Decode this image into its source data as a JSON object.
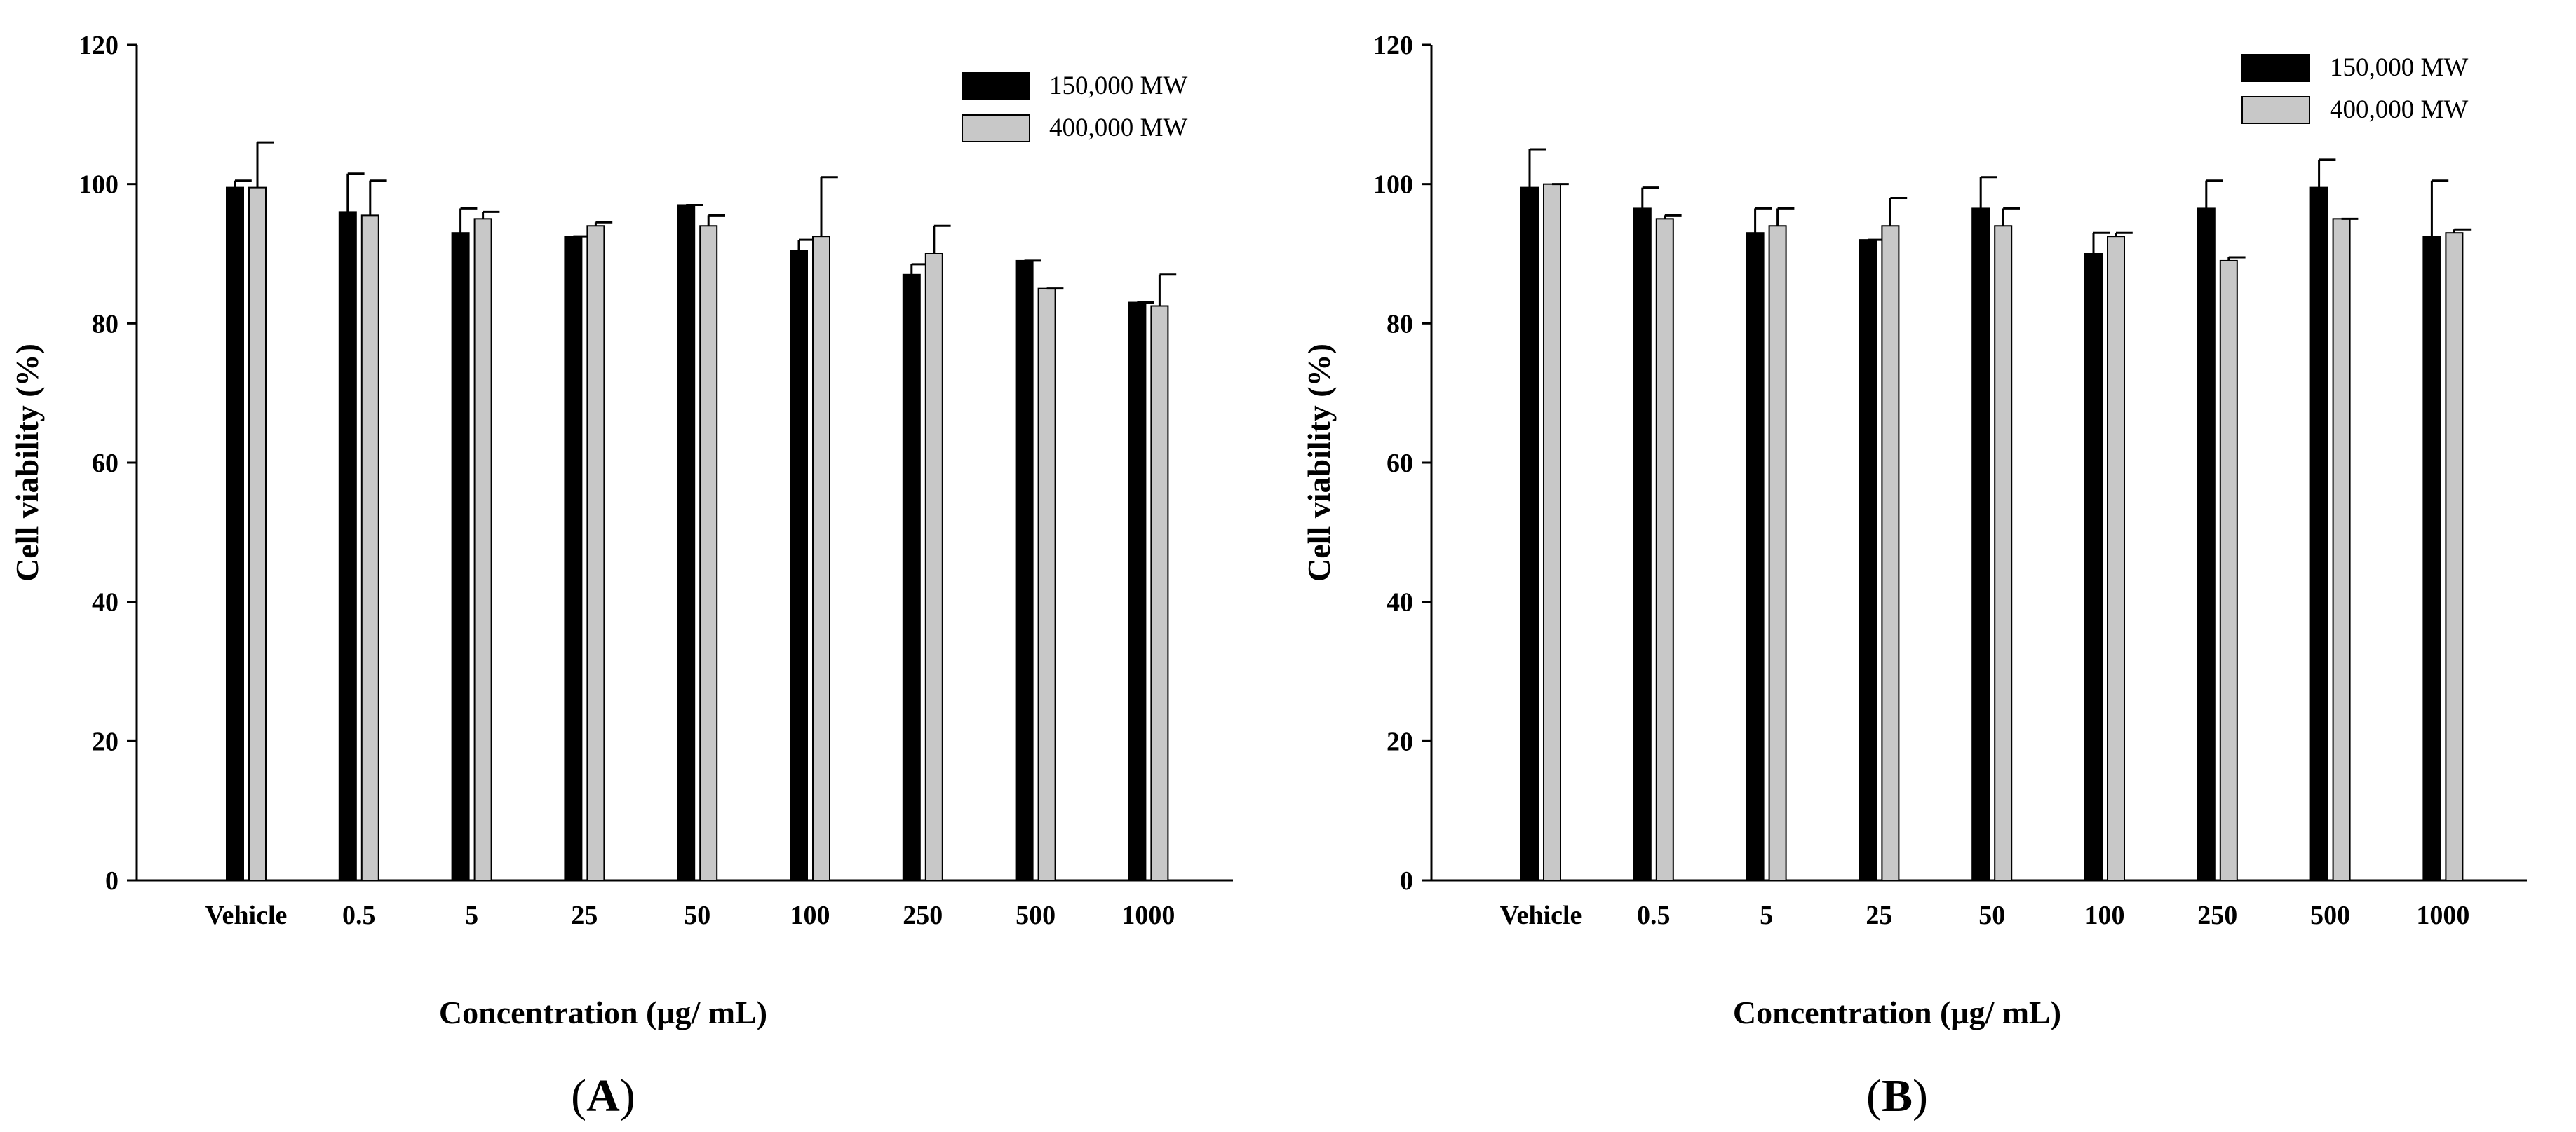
{
  "chart_data": [
    {
      "type": "bar",
      "panel_label": "A",
      "title": "",
      "xlabel": "Concentration (μg/ mL)",
      "ylabel": "Cell viability (%)",
      "ylim": [
        0,
        120
      ],
      "yticks": [
        0,
        20,
        40,
        60,
        80,
        100,
        120
      ],
      "ytick_labels": [
        "0",
        "20",
        "40",
        "60",
        "80",
        "100",
        "120"
      ],
      "grid": false,
      "legend_position": "top-right",
      "categories": [
        "Vehicle",
        "0.5",
        "5",
        "25",
        "50",
        "100",
        "250",
        "500",
        "1000"
      ],
      "series": [
        {
          "name": "150,000 MW",
          "color": "#000000",
          "values": [
            99.5,
            96.0,
            93.0,
            92.5,
            97.0,
            90.5,
            87.0,
            89.0,
            83.0
          ],
          "errors": [
            1.0,
            5.5,
            3.5,
            0.0,
            0.0,
            1.5,
            1.5,
            0.0,
            0.0
          ]
        },
        {
          "name": "400,000 MW",
          "color": "#c8c8c8",
          "values": [
            99.5,
            95.5,
            95.0,
            94.0,
            94.0,
            92.5,
            90.0,
            85.0,
            82.5
          ],
          "errors": [
            6.5,
            5.0,
            1.0,
            0.5,
            1.5,
            8.5,
            4.0,
            0.0,
            4.5
          ]
        }
      ]
    },
    {
      "type": "bar",
      "panel_label": "B",
      "title": "",
      "xlabel": "Concentration (μg/ mL)",
      "ylabel": "Cell viability (%)",
      "ylim": [
        0,
        120
      ],
      "yticks": [
        0,
        20,
        40,
        60,
        80,
        100,
        120
      ],
      "ytick_labels": [
        "0",
        "20",
        "40",
        "60",
        "80",
        "100",
        "120"
      ],
      "grid": false,
      "legend_position": "top-right",
      "categories": [
        "Vehicle",
        "0.5",
        "5",
        "25",
        "50",
        "100",
        "250",
        "500",
        "1000"
      ],
      "series": [
        {
          "name": "150,000 MW",
          "color": "#000000",
          "values": [
            99.5,
            96.5,
            93.0,
            92.0,
            96.5,
            90.0,
            96.5,
            99.5,
            92.5
          ],
          "errors": [
            5.5,
            3.0,
            3.5,
            0.0,
            4.5,
            3.0,
            4.0,
            4.0,
            8.0
          ]
        },
        {
          "name": "400,000 MW",
          "color": "#c8c8c8",
          "values": [
            100.0,
            95.0,
            94.0,
            94.0,
            94.0,
            92.5,
            89.0,
            95.0,
            93.0
          ],
          "errors": [
            0.0,
            0.5,
            2.5,
            4.0,
            2.5,
            0.5,
            0.5,
            0.0,
            0.5
          ]
        }
      ]
    }
  ]
}
